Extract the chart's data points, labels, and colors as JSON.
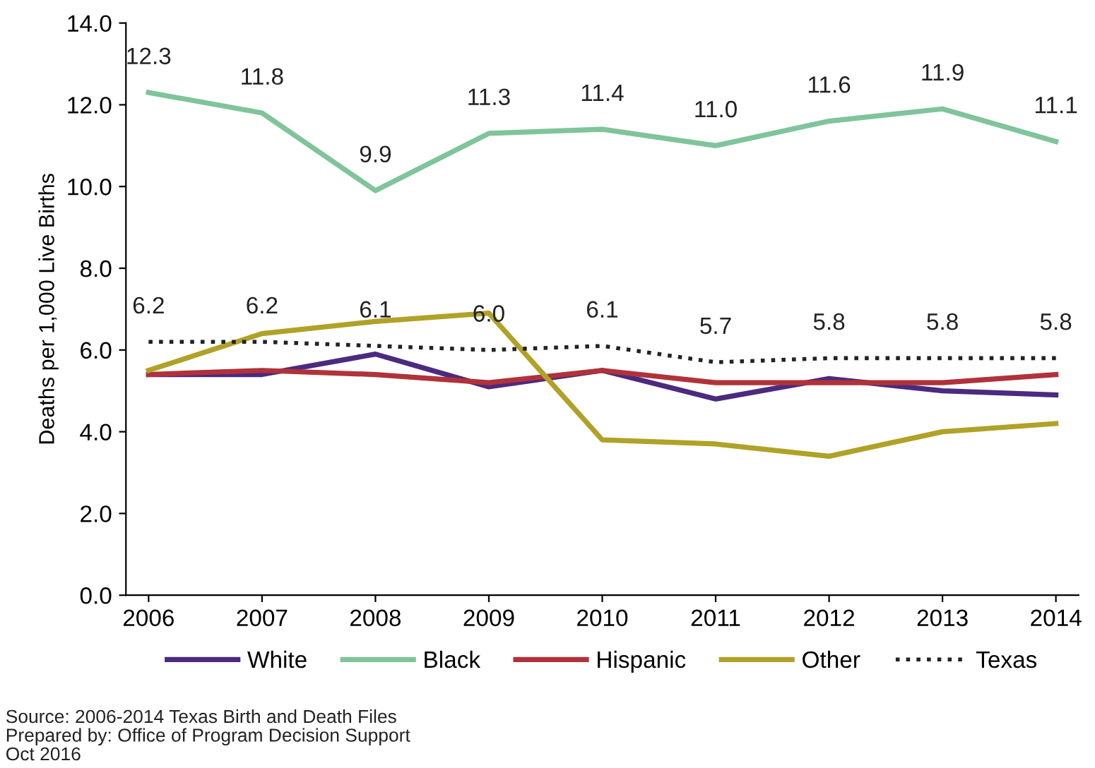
{
  "chart_data": {
    "type": "line",
    "ylabel": "Deaths per 1,000 Live Births",
    "categories": [
      "2006",
      "2007",
      "2008",
      "2009",
      "2010",
      "2011",
      "2012",
      "2013",
      "2014"
    ],
    "series": [
      {
        "name": "White",
        "color": "#4b2a7f",
        "values": [
          5.4,
          5.4,
          5.9,
          5.1,
          5.5,
          4.8,
          5.3,
          5.0,
          4.9
        ]
      },
      {
        "name": "Black",
        "color": "#7fc49a",
        "values": [
          12.3,
          11.8,
          9.9,
          11.3,
          11.4,
          11.0,
          11.6,
          11.9,
          11.1
        ],
        "value_labels": [
          "12.3",
          "11.8",
          "9.9",
          "11.3",
          "11.4",
          "11.0",
          "11.6",
          "11.9",
          "11.1"
        ]
      },
      {
        "name": "Hispanic",
        "color": "#b0323a",
        "values": [
          5.4,
          5.5,
          5.4,
          5.2,
          5.5,
          5.2,
          5.2,
          5.2,
          5.4
        ]
      },
      {
        "name": "Other",
        "color": "#b0a228",
        "values": [
          5.5,
          6.4,
          6.7,
          6.9,
          3.8,
          3.7,
          3.4,
          4.0,
          4.2
        ]
      },
      {
        "name": "Texas",
        "color": "#222222",
        "line_style": "dotted",
        "values": [
          6.2,
          6.2,
          6.1,
          6.0,
          6.1,
          5.7,
          5.8,
          5.8,
          5.8
        ],
        "value_labels": [
          "6.2",
          "6.2",
          "6.1",
          "6.0",
          "6.1",
          "5.7",
          "5.8",
          "5.8",
          "5.8"
        ]
      }
    ],
    "ylim": [
      0,
      14
    ],
    "yticks": [
      {
        "value": 0,
        "label": "0.0"
      },
      {
        "value": 2,
        "label": "2.0"
      },
      {
        "value": 4,
        "label": "4.0"
      },
      {
        "value": 6,
        "label": "6.0"
      },
      {
        "value": 8,
        "label": "8.0"
      },
      {
        "value": 10,
        "label": "10.0"
      },
      {
        "value": 12,
        "label": "12.0"
      },
      {
        "value": 14,
        "label": "14.0"
      }
    ],
    "grid": false,
    "legend": "bottom",
    "marker": "none",
    "annotations": [
      "Source: 2006-2014 Texas Birth and Death Files\nPrepared by: Office of Program Decision Support\nOct 2016"
    ]
  }
}
